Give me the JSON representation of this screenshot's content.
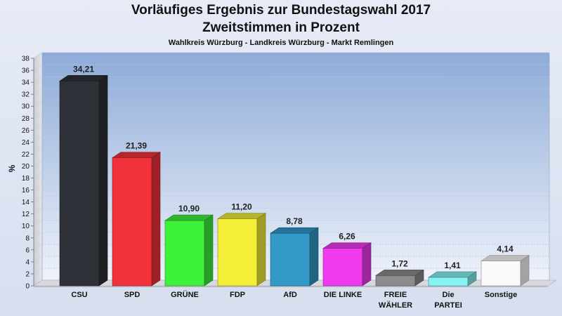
{
  "chart_data": {
    "type": "bar",
    "title": "Vorläufiges Ergebnis zur Bundestagswahl 2017",
    "subtitle": "Zweitstimmen in Prozent",
    "caption": "Wahlkreis Würzburg - Landkreis Würzburg - Markt Remlingen",
    "ylabel": "%",
    "xlabel": "",
    "ylim": [
      0,
      38
    ],
    "yticks": [
      "0",
      "2",
      "4",
      "6",
      "8",
      "10",
      "12",
      "14",
      "16",
      "18",
      "20",
      "22",
      "24",
      "26",
      "28",
      "30",
      "32",
      "34",
      "36",
      "38"
    ],
    "grid": true,
    "legend": "none",
    "categories": [
      {
        "lines": [
          "CSU"
        ]
      },
      {
        "lines": [
          "SPD"
        ]
      },
      {
        "lines": [
          "GRÜNE"
        ]
      },
      {
        "lines": [
          "FDP"
        ]
      },
      {
        "lines": [
          "AfD"
        ]
      },
      {
        "lines": [
          "DIE LINKE"
        ]
      },
      {
        "lines": [
          "FREIE",
          "WÄHLER"
        ]
      },
      {
        "lines": [
          "Die",
          "PARTEI"
        ]
      },
      {
        "lines": [
          "Sonstige"
        ]
      }
    ],
    "values": [
      34.21,
      21.39,
      10.9,
      11.2,
      8.78,
      6.26,
      1.72,
      1.41,
      4.14
    ],
    "value_labels": [
      "34,21",
      "21,39",
      "10,90",
      "11,20",
      "8,78",
      "6,26",
      "1,72",
      "1,41",
      "4,14"
    ],
    "colors": [
      "#2e3138",
      "#f2323a",
      "#3ef23c",
      "#f4f03a",
      "#3198c8",
      "#f03af0",
      "#8c8c8c",
      "#86f4f4",
      "#fafafa"
    ]
  }
}
